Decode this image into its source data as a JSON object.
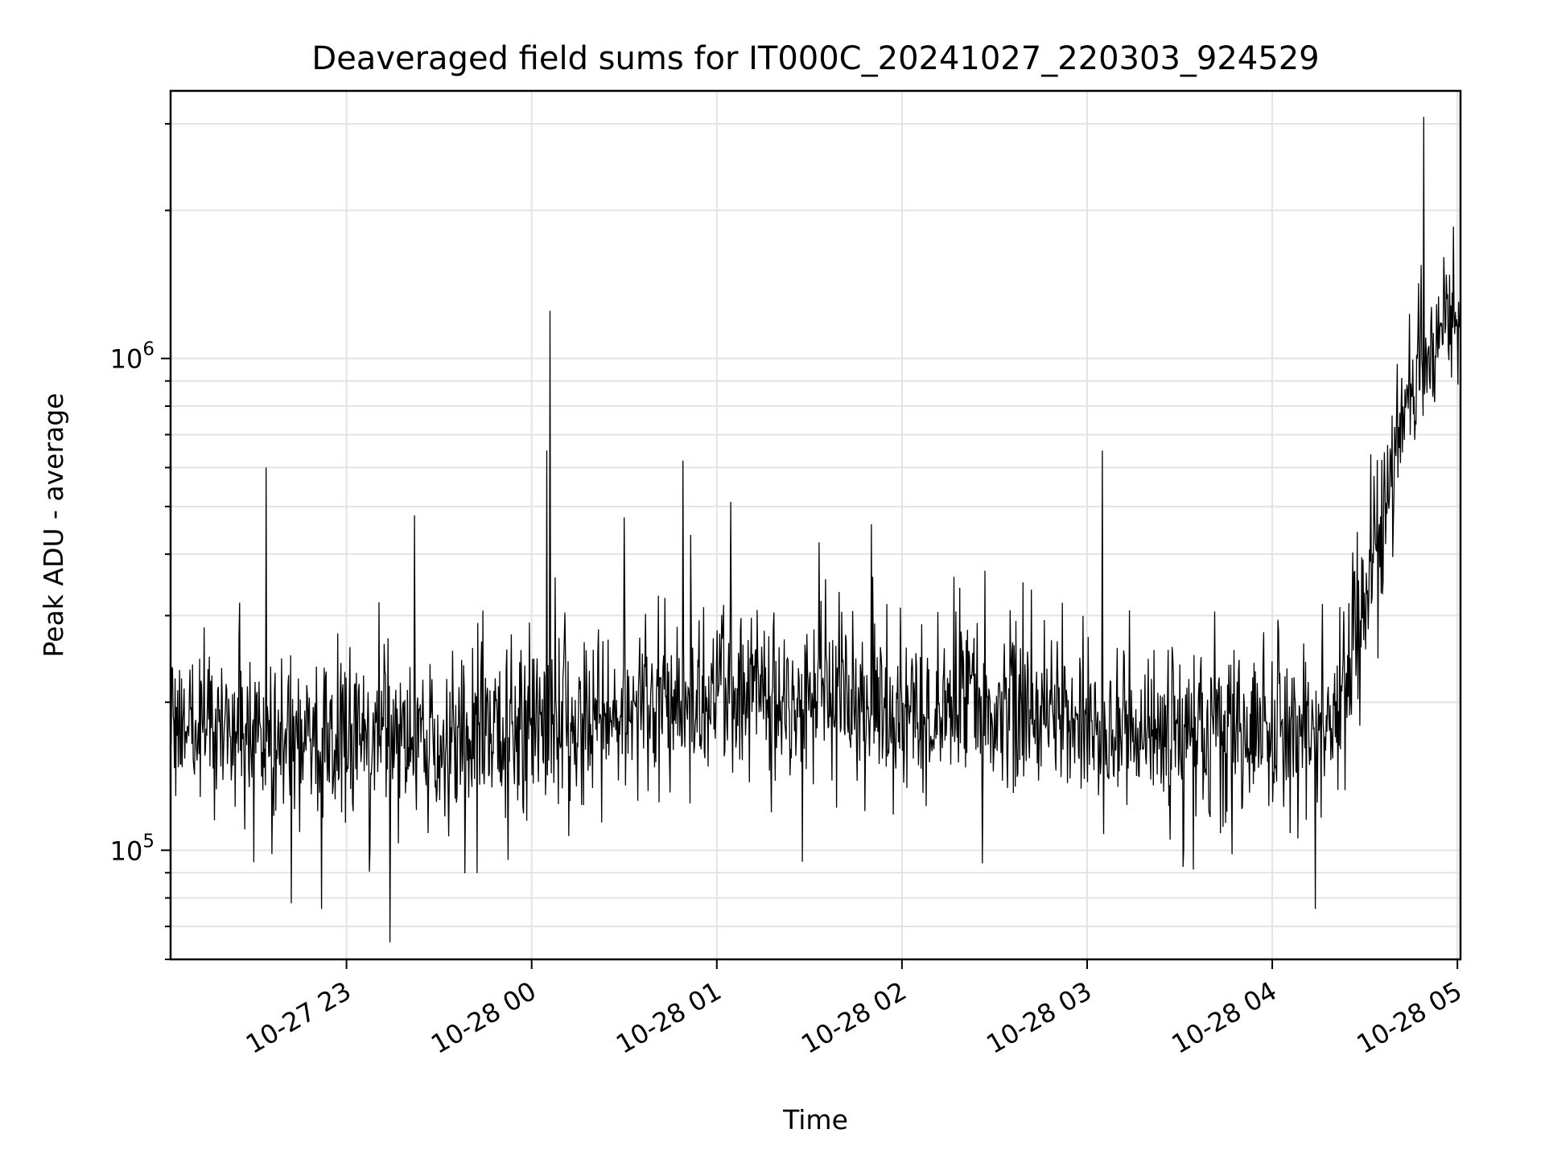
{
  "chart_data": {
    "type": "line",
    "title": "Deaveraged field sums for IT000C_20241027_220303_924529",
    "xlabel": "Time",
    "ylabel": "Peak ADU - average",
    "y_scale": "log",
    "ylim": [
      60000,
      3500000
    ],
    "xlim": [
      "2024-10-27 22:03",
      "2024-10-28 05:01"
    ],
    "x_ticks": [
      "10-27 23",
      "10-28 00",
      "10-28 01",
      "10-28 02",
      "10-28 03",
      "10-28 04",
      "10-28 05"
    ],
    "y_ticks": [
      {
        "value": 100000,
        "base": "10",
        "exp": "5"
      },
      {
        "value": 1000000,
        "base": "10",
        "exp": "6"
      }
    ],
    "grid": true,
    "series": [
      {
        "color": "#000000",
        "x": [
          "2024-10-27 22:03",
          "2024-10-27 22:20",
          "2024-10-27 22:40",
          "2024-10-27 23:00",
          "2024-10-27 23:20",
          "2024-10-27 23:40",
          "2024-10-28 00:00",
          "2024-10-28 00:20",
          "2024-10-28 00:40",
          "2024-10-28 01:00",
          "2024-10-28 01:20",
          "2024-10-28 01:40",
          "2024-10-28 02:00",
          "2024-10-28 02:20",
          "2024-10-28 02:40",
          "2024-10-28 03:00",
          "2024-10-28 03:20",
          "2024-10-28 03:40",
          "2024-10-28 04:00",
          "2024-10-28 04:20",
          "2024-10-28 04:35",
          "2024-10-28 04:45",
          "2024-10-28 05:01"
        ],
        "y": [
          180000,
          175000,
          170000,
          170000,
          165000,
          170000,
          175000,
          185000,
          195000,
          215000,
          205000,
          200000,
          195000,
          195000,
          190000,
          185000,
          175000,
          175000,
          170000,
          175000,
          450000,
          900000,
          1250000
        ]
      }
    ],
    "spikes": [
      {
        "x": "2024-10-28 00:06",
        "y": 1250000
      },
      {
        "x": "2024-10-28 00:05",
        "y": 650000
      },
      {
        "x": "2024-10-27 22:34",
        "y": 600000
      },
      {
        "x": "2024-10-28 00:49",
        "y": 620000
      },
      {
        "x": "2024-10-28 03:05",
        "y": 650000
      },
      {
        "x": "2024-10-27 23:22",
        "y": 480000
      },
      {
        "x": "2024-10-28 00:30",
        "y": 475000
      },
      {
        "x": "2024-10-28 01:50",
        "y": 460000
      },
      {
        "x": "2024-10-28 04:49",
        "y": 3100000
      },
      {
        "x": "2024-10-27 23:14",
        "y": 65000
      },
      {
        "x": "2024-10-27 22:42",
        "y": 78000
      },
      {
        "x": "2024-10-27 22:52",
        "y": 76000
      },
      {
        "x": "2024-10-28 04:14",
        "y": 76000
      }
    ]
  }
}
